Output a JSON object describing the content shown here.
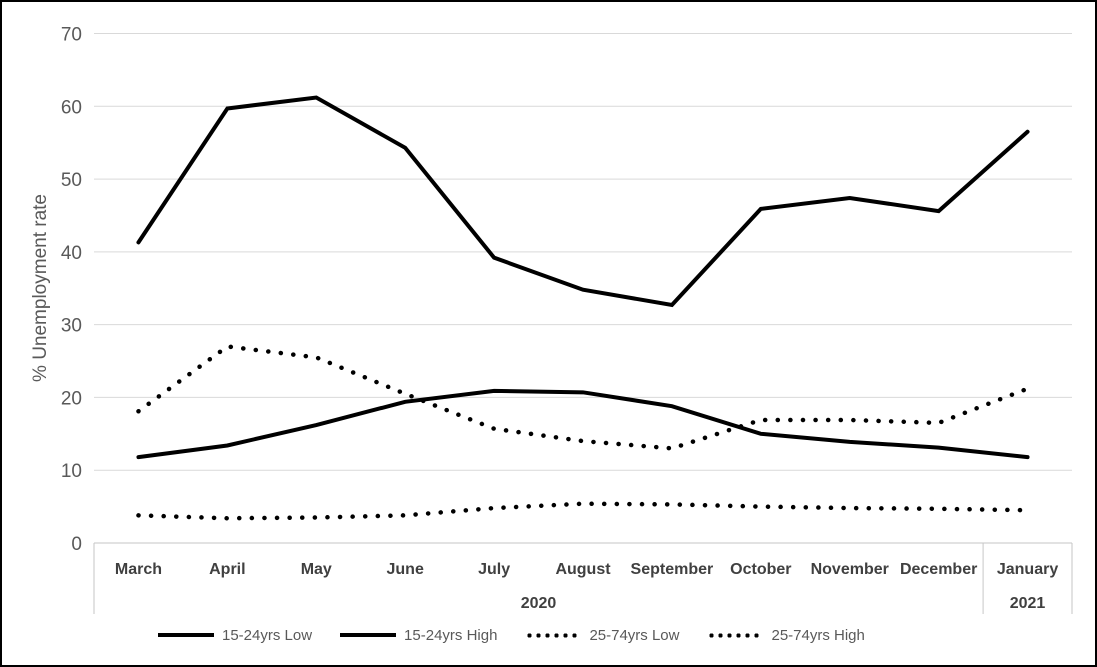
{
  "chart_data": {
    "type": "line",
    "title": "",
    "xlabel": "",
    "ylabel": "% Unemployment rate",
    "ylim": [
      0,
      70
    ],
    "yticks": [
      0,
      10,
      20,
      30,
      40,
      50,
      60,
      70
    ],
    "grid": true,
    "legend_position": "bottom",
    "categories": [
      "March",
      "April",
      "May",
      "June",
      "July",
      "August",
      "September",
      "October",
      "November",
      "December",
      "January"
    ],
    "x_groups": [
      {
        "label": "2020",
        "start": 0,
        "end": 9
      },
      {
        "label": "2021",
        "start": 10,
        "end": 10
      }
    ],
    "series": [
      {
        "name": "15-24yrs Low",
        "style": "solid",
        "color": "#000000",
        "values": [
          11.8,
          13.4,
          16.2,
          19.4,
          20.9,
          20.7,
          18.8,
          15.0,
          13.9,
          13.1,
          11.8
        ]
      },
      {
        "name": "15-24yrs High",
        "style": "solid",
        "color": "#000000",
        "values": [
          41.3,
          59.7,
          61.2,
          54.3,
          39.2,
          34.8,
          32.7,
          45.9,
          47.4,
          45.6,
          56.5
        ]
      },
      {
        "name": "25-74yrs Low",
        "style": "dotted",
        "color": "#000000",
        "values": [
          3.8,
          3.4,
          3.5,
          3.8,
          4.8,
          5.4,
          5.3,
          5.0,
          4.8,
          4.7,
          4.5
        ]
      },
      {
        "name": "25-74yrs High",
        "style": "dotted",
        "color": "#000000",
        "values": [
          18.1,
          27.0,
          25.5,
          20.5,
          15.7,
          14.0,
          13.0,
          16.9,
          16.9,
          16.5,
          21.2
        ]
      }
    ],
    "colors": {
      "line": "#000000",
      "gridline": "#D9D9D9",
      "axis_line": "#C6C6C6",
      "tick_label": "#595959",
      "category_label": "#404040",
      "legend_label": "#595959",
      "border": "#000000",
      "background": "#FFFFFF"
    }
  }
}
